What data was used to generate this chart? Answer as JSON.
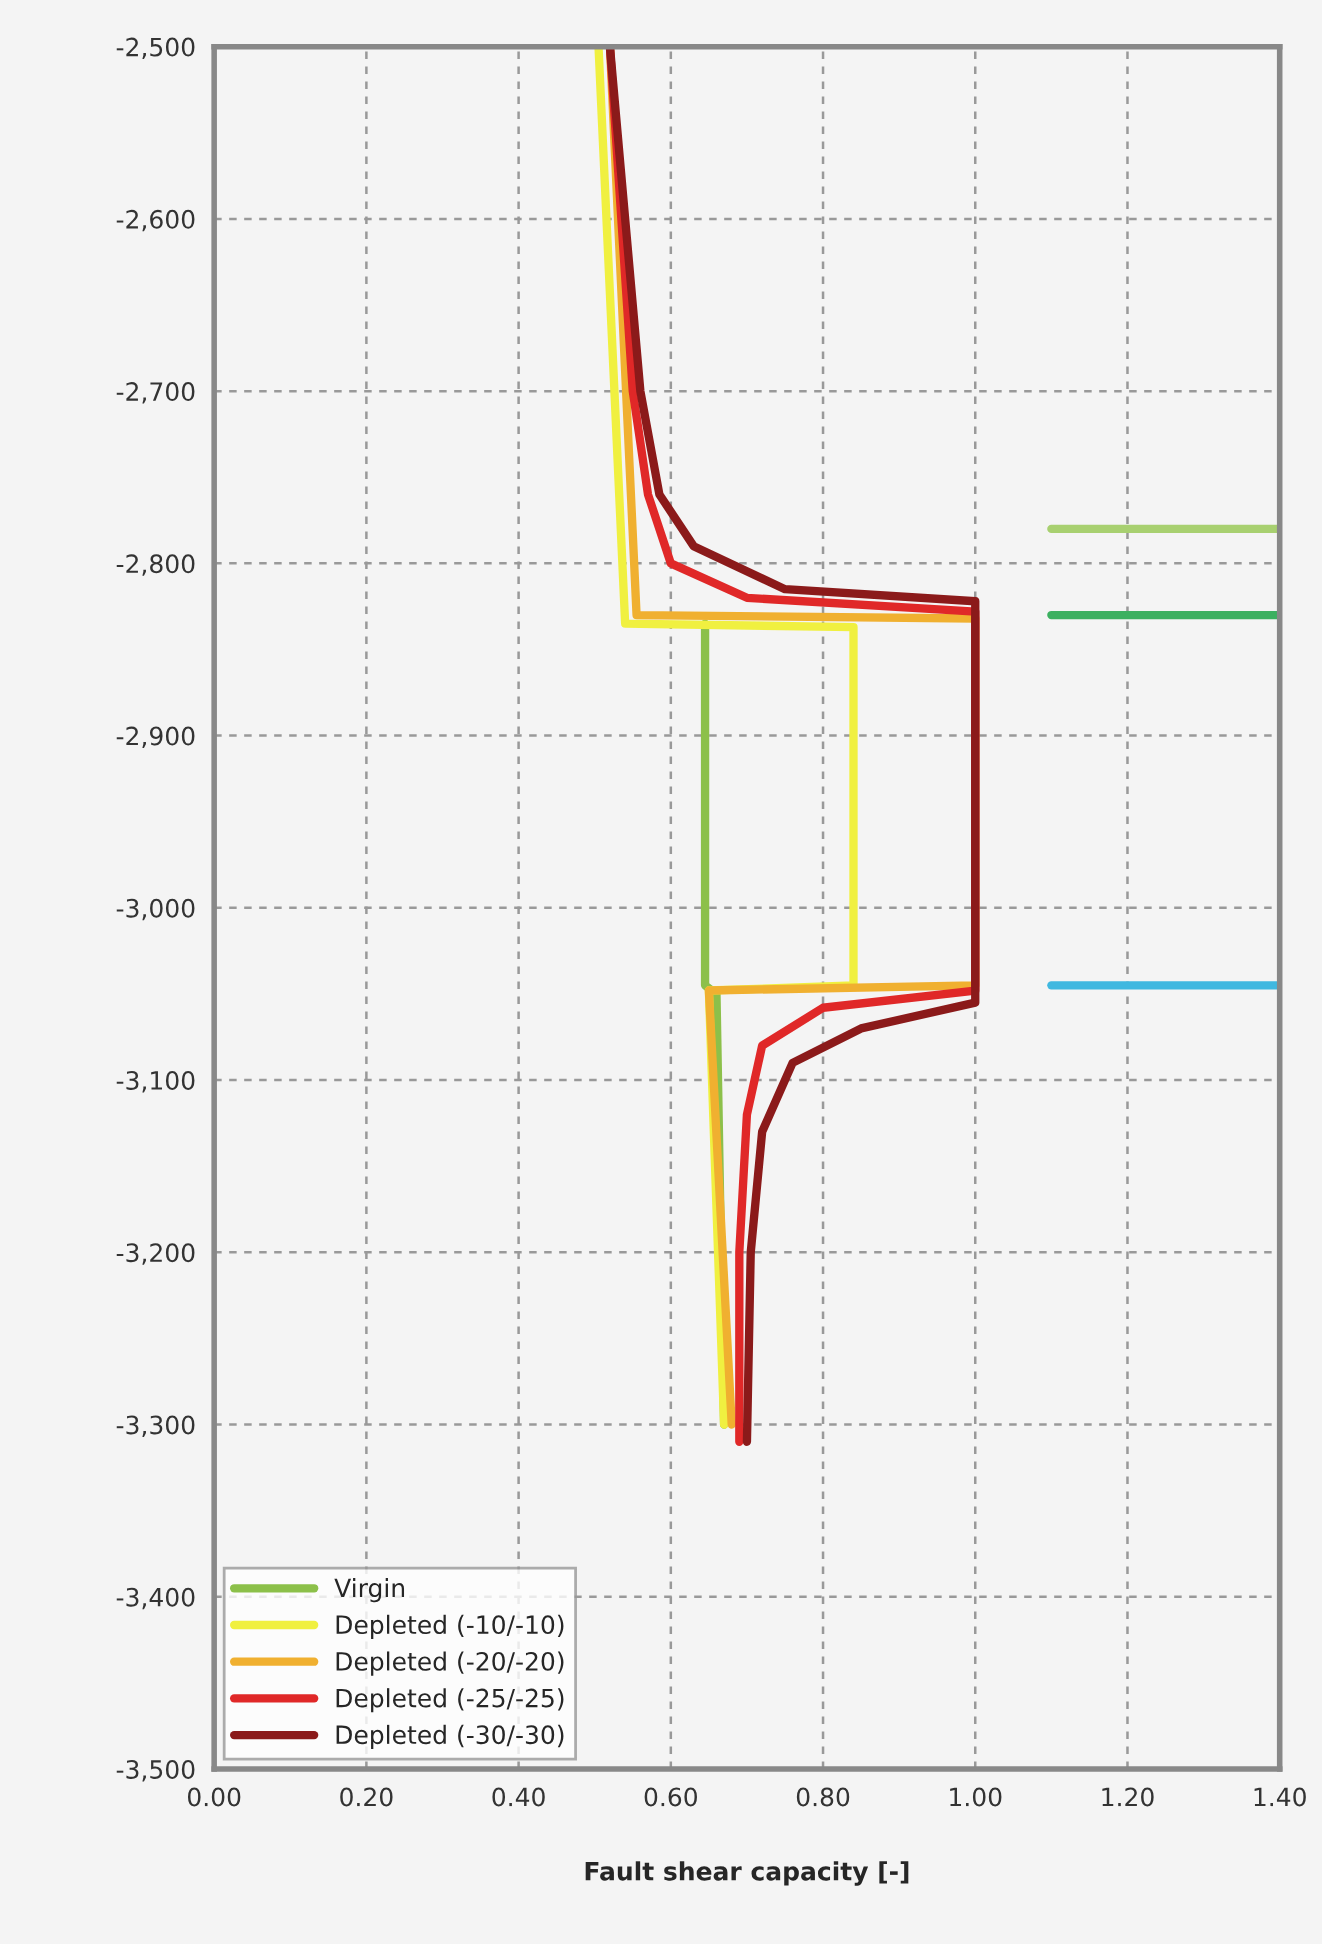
{
  "chart_data": {
    "type": "line",
    "xlabel": "Fault shear capacity [-]",
    "xlim": [
      0,
      1.4
    ],
    "xticks": [
      {
        "value": 0,
        "label": "0.00"
      },
      {
        "value": 0.2,
        "label": "0.20"
      },
      {
        "value": 0.4,
        "label": "0.40"
      },
      {
        "value": 0.6,
        "label": "0.60"
      },
      {
        "value": 0.8,
        "label": "0.80"
      },
      {
        "value": 1.0,
        "label": "1.00"
      },
      {
        "value": 1.2,
        "label": "1.20"
      },
      {
        "value": 1.4,
        "label": "1.40"
      }
    ],
    "ylim": [
      -3500,
      -2500
    ],
    "yticks": [
      {
        "value": -3500,
        "label": "-3,500"
      },
      {
        "value": -3400,
        "label": "-3,400"
      },
      {
        "value": -3300,
        "label": "-3,300"
      },
      {
        "value": -3200,
        "label": "-3,200"
      },
      {
        "value": -3100,
        "label": "-3,100"
      },
      {
        "value": -3000,
        "label": "-3,000"
      },
      {
        "value": -2900,
        "label": "-2,900"
      },
      {
        "value": -2800,
        "label": "-2,800"
      },
      {
        "value": -2700,
        "label": "-2,700"
      },
      {
        "value": -2600,
        "label": "-2,600"
      },
      {
        "value": -2500,
        "label": "-2,500"
      }
    ],
    "grid": true,
    "legend": "bottom left",
    "line_style": "solid",
    "series": [
      {
        "name": "Virgin",
        "color": "#8cc04a",
        "x": [
          0.645,
          0.645,
          0.66,
          0.67
        ],
        "values": [
          -2835,
          -3045,
          -3050,
          -3300
        ]
      },
      {
        "name": "Depleted (-10/-10)",
        "color": "#f0f040",
        "x": [
          0.505,
          0.54,
          0.84,
          0.84,
          0.65,
          0.67
        ],
        "values": [
          -2500,
          -2835,
          -2837,
          -3045,
          -3048,
          -3300
        ]
      },
      {
        "name": "Depleted (-20/-20)",
        "color": "#f0b030",
        "x": [
          0.52,
          0.555,
          1.0,
          1.0,
          0.65,
          0.68
        ],
        "values": [
          -2500,
          -2830,
          -2832,
          -3045,
          -3048,
          -3300
        ]
      },
      {
        "name": "Depleted (-25/-25)",
        "color": "#e02828",
        "x": [
          0.52,
          0.55,
          0.57,
          0.6,
          0.7,
          1.0,
          1.0,
          0.8,
          0.72,
          0.7,
          0.69,
          0.69
        ],
        "values": [
          -2500,
          -2700,
          -2760,
          -2800,
          -2820,
          -2828,
          -3048,
          -3058,
          -3080,
          -3120,
          -3200,
          -3310
        ]
      },
      {
        "name": "Depleted (-30/-30)",
        "color": "#8b1a1a",
        "x": [
          0.52,
          0.56,
          0.585,
          0.63,
          0.75,
          1.0,
          1.0,
          0.85,
          0.76,
          0.72,
          0.705,
          0.7
        ],
        "values": [
          -2500,
          -2700,
          -2760,
          -2790,
          -2815,
          -2822,
          -3055,
          -3070,
          -3090,
          -3130,
          -3200,
          -3310
        ]
      },
      {
        "color": "#a8d070",
        "x": [
          1.1,
          1.4
        ],
        "values": [
          -2780,
          -2780
        ]
      },
      {
        "color": "#3cb060",
        "x": [
          1.1,
          1.4
        ],
        "values": [
          -2830,
          -2830
        ]
      },
      {
        "color": "#40b8e0",
        "x": [
          1.1,
          1.4
        ],
        "values": [
          -3045,
          -3045
        ]
      }
    ]
  }
}
